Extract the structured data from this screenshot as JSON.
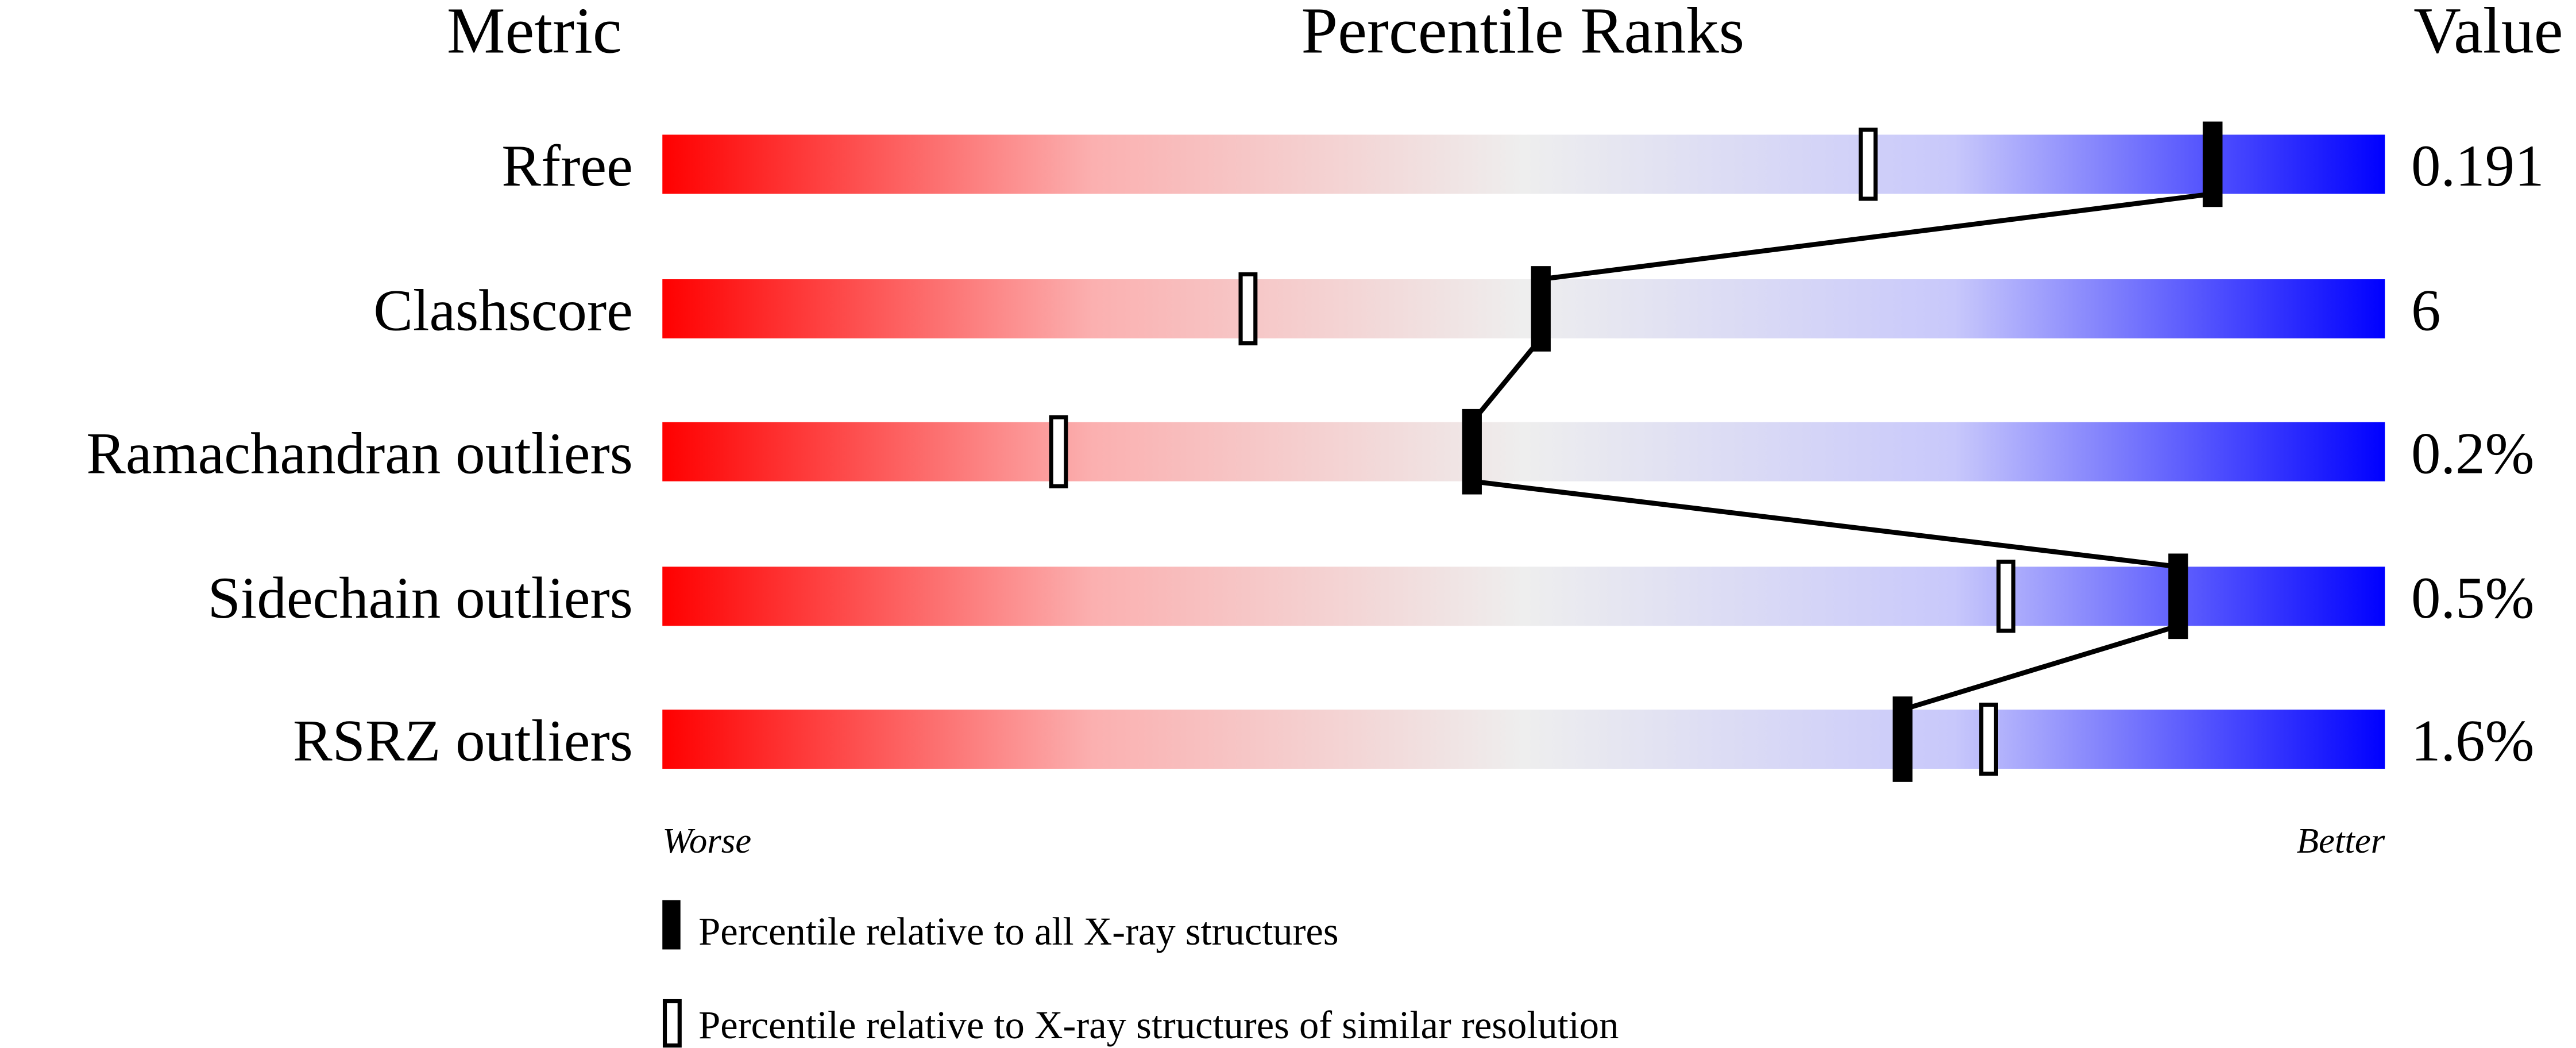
{
  "chart_data": {
    "type": "percentile-slider",
    "headers": {
      "metric": "Metric",
      "ranks": "Percentile Ranks",
      "value": "Value"
    },
    "xlim": [
      0,
      100
    ],
    "axis_labels": {
      "left": "Worse",
      "right": "Better"
    },
    "colors": {
      "worse": "#ff0000",
      "middle": "#eeeeee",
      "better": "#0000ff",
      "marker": "#000000"
    },
    "rows": [
      {
        "metric": "Rfree",
        "value": "0.191",
        "percentile_all": 90,
        "percentile_similar": 70
      },
      {
        "metric": "Clashscore",
        "value": "6",
        "percentile_all": 51,
        "percentile_similar": 34
      },
      {
        "metric": "Ramachandran outliers",
        "value": "0.2%",
        "percentile_all": 47,
        "percentile_similar": 23
      },
      {
        "metric": "Sidechain outliers",
        "value": "0.5%",
        "percentile_all": 88,
        "percentile_similar": 78
      },
      {
        "metric": "RSRZ outliers",
        "value": "1.6%",
        "percentile_all": 72,
        "percentile_similar": 77
      }
    ],
    "legend": [
      {
        "marker": "filled",
        "label": "Percentile relative to all X-ray structures"
      },
      {
        "marker": "open",
        "label": "Percentile relative to X-ray structures of similar resolution"
      }
    ]
  }
}
